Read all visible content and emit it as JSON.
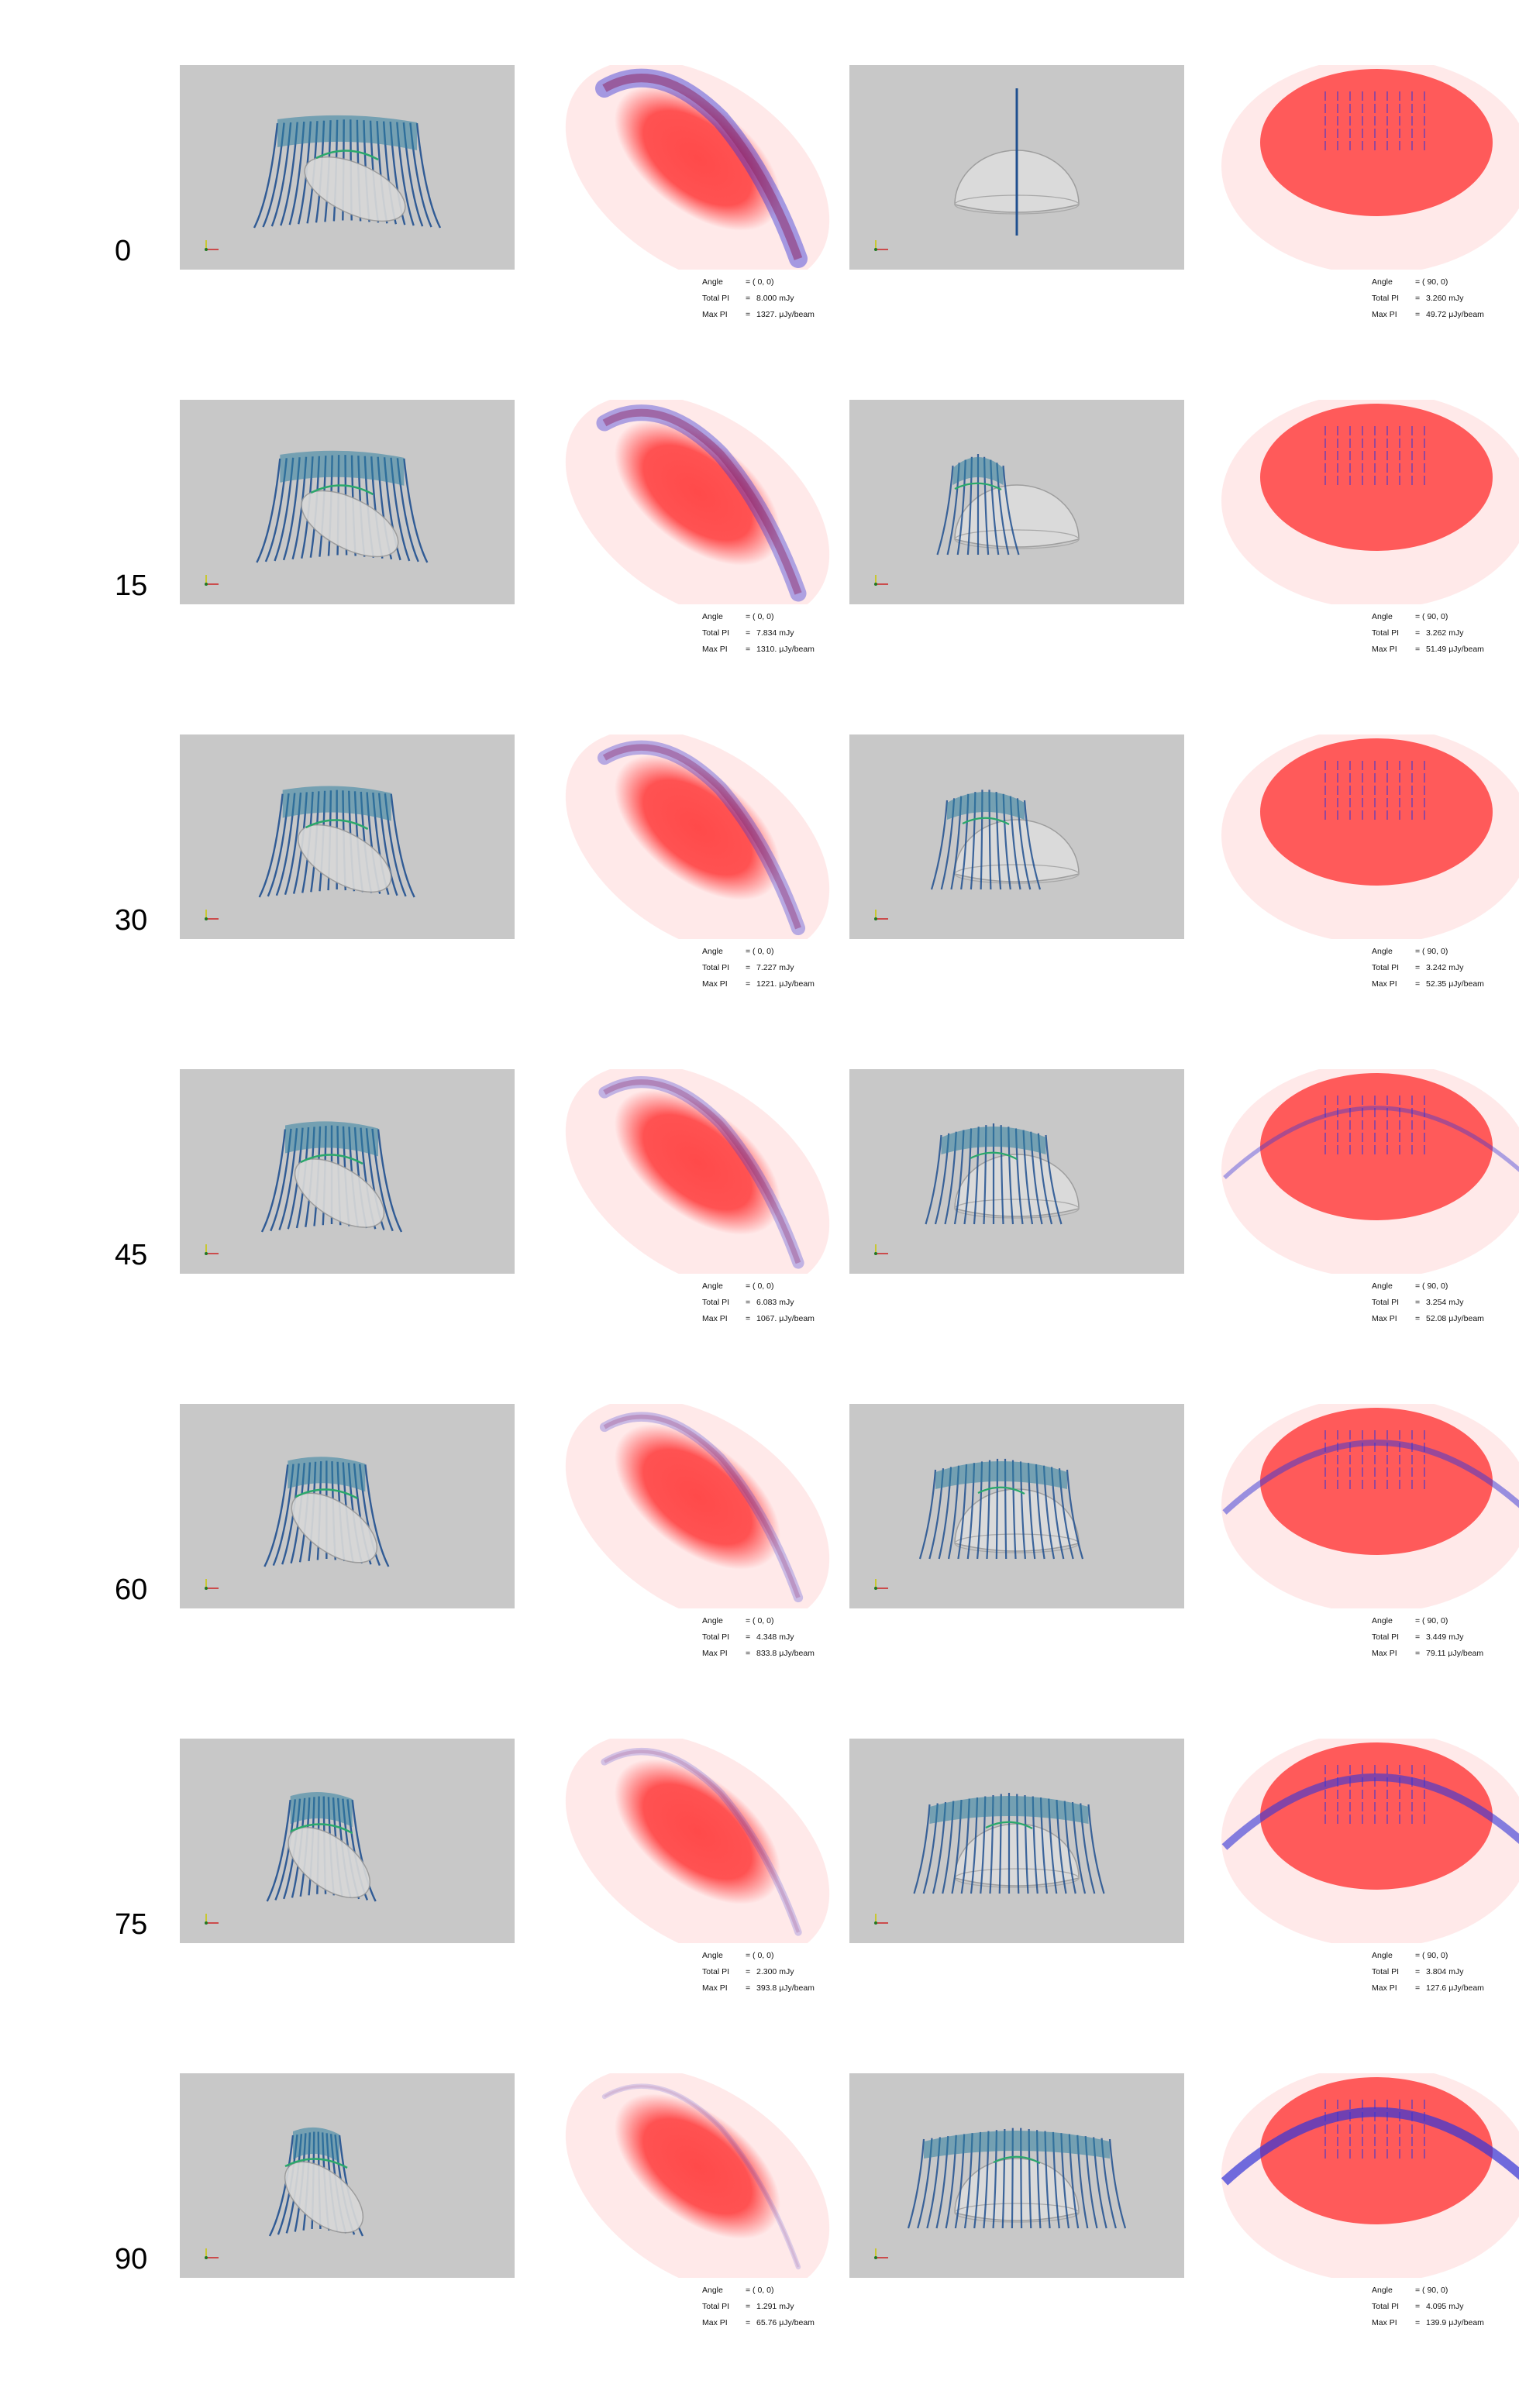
{
  "colors": {
    "panel_bg": "#c8c8c8",
    "field_lines": "#1f4f8f",
    "field_green": "#2aa86b",
    "emission_red": "#ff4a4a",
    "vector_blue": "#3636d6"
  },
  "icons": [
    "axes-triad-icon"
  ],
  "rows": [
    {
      "angle": "0",
      "left": {
        "angle": "= (  0,  0)",
        "total_pi": "8.000 mJy",
        "max_pi": "1327. μJy/beam"
      },
      "right": {
        "angle": "= ( 90,  0)",
        "total_pi": "3.260 mJy",
        "max_pi": "49.72 μJy/beam"
      }
    },
    {
      "angle": "15",
      "left": {
        "angle": "= (  0,  0)",
        "total_pi": "7.834 mJy",
        "max_pi": "1310. μJy/beam"
      },
      "right": {
        "angle": "= ( 90,  0)",
        "total_pi": "3.262 mJy",
        "max_pi": "51.49 μJy/beam"
      }
    },
    {
      "angle": "30",
      "left": {
        "angle": "= (  0,  0)",
        "total_pi": "7.227 mJy",
        "max_pi": "1221. μJy/beam"
      },
      "right": {
        "angle": "= ( 90,  0)",
        "total_pi": "3.242 mJy",
        "max_pi": "52.35 μJy/beam"
      }
    },
    {
      "angle": "45",
      "left": {
        "angle": "= (  0,  0)",
        "total_pi": "6.083 mJy",
        "max_pi": "1067. μJy/beam"
      },
      "right": {
        "angle": "= ( 90,  0)",
        "total_pi": "3.254 mJy",
        "max_pi": "52.08 μJy/beam"
      }
    },
    {
      "angle": "60",
      "left": {
        "angle": "= (  0,  0)",
        "total_pi": "4.348 mJy",
        "max_pi": "833.8 μJy/beam"
      },
      "right": {
        "angle": "= ( 90,  0)",
        "total_pi": "3.449 mJy",
        "max_pi": "79.11 μJy/beam"
      }
    },
    {
      "angle": "75",
      "left": {
        "angle": "= (  0,  0)",
        "total_pi": "2.300 mJy",
        "max_pi": "393.8 μJy/beam"
      },
      "right": {
        "angle": "= ( 90,  0)",
        "total_pi": "3.804 mJy",
        "max_pi": "127.6 μJy/beam"
      }
    },
    {
      "angle": "90",
      "left": {
        "angle": "= (  0,  0)",
        "total_pi": "1.291 mJy",
        "max_pi": "65.76 μJy/beam"
      },
      "right": {
        "angle": "= ( 90,  0)",
        "total_pi": "4.095 mJy",
        "max_pi": "139.9 μJy/beam"
      }
    }
  ],
  "labels": {
    "angle": "Angle",
    "total_pi": "Total PI",
    "max_pi": "Max PI",
    "eq": "="
  }
}
